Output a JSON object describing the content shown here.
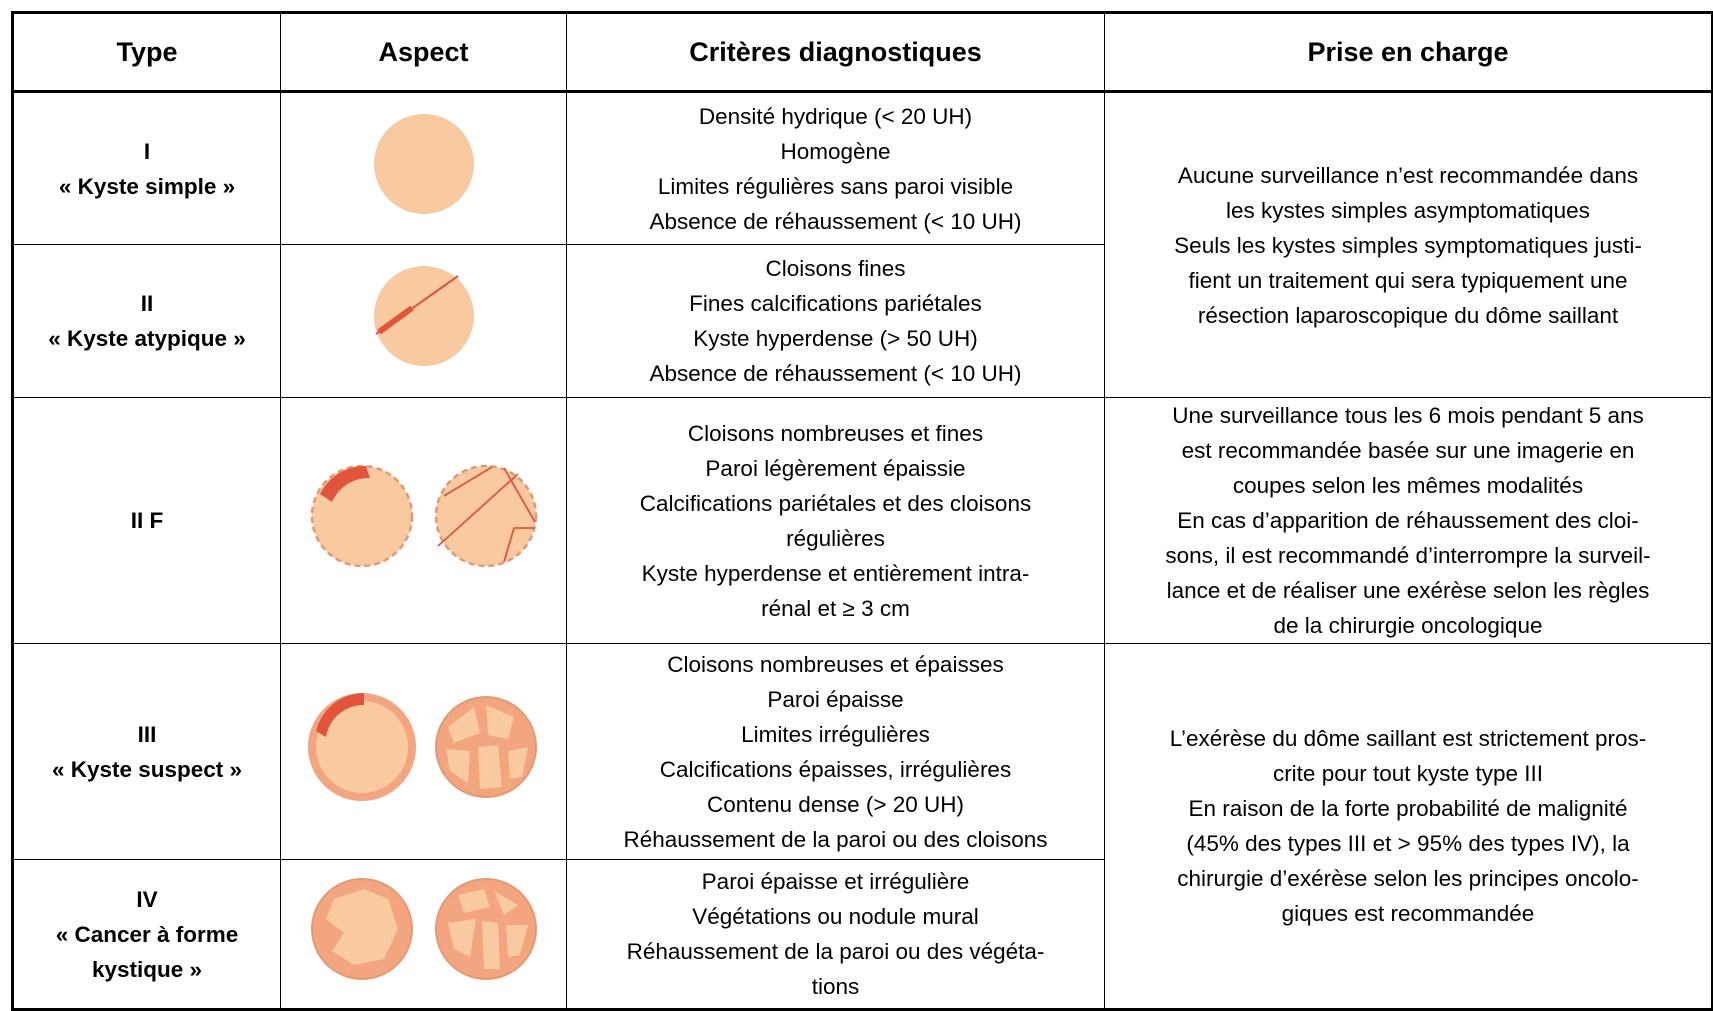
{
  "table": {
    "headers": [
      "Type",
      "Aspect",
      "Critères diagnostiques",
      "Prise en charge"
    ],
    "rows": [
      {
        "type": "I",
        "name": [
          "« Kyste simple »"
        ],
        "criteria": [
          "Densité hydrique (< 20 UH)",
          "Homogène",
          "Limites régulières sans paroi visible",
          "Absence de réhaussement (< 10 UH)"
        ]
      },
      {
        "type": "II",
        "name": [
          "« Kyste atypique »"
        ],
        "criteria": [
          "Cloisons fines",
          "Fines calcifications pariétales",
          "Kyste hyperdense (> 50 UH)",
          "Absence de réhaussement (< 10 UH)"
        ]
      },
      {
        "type": "II F",
        "criteria": [
          "Cloisons nombreuses et fines",
          "Paroi légèrement épaissie",
          "Calcifications pariétales et des cloisons",
          "régulières",
          "Kyste hyperdense et entièrement intra-",
          "rénal et ≥ 3 cm"
        ]
      },
      {
        "type": "III",
        "name": [
          "« Kyste suspect »"
        ],
        "criteria": [
          "Cloisons nombreuses et épaisses",
          "Paroi épaisse",
          "Limites irrégulières",
          "Calcifications épaisses, irrégulières",
          "Contenu dense (> 20 UH)",
          "Réhaussement de la paroi ou des cloisons"
        ]
      },
      {
        "type": "IV",
        "name": [
          "« Cancer à forme",
          "kystique »"
        ],
        "criteria": [
          "Paroi épaisse et irrégulière",
          "Végétations ou nodule mural",
          "Réhaussement de la paroi ou des végéta-",
          "tions"
        ]
      }
    ],
    "management": [
      [
        "Aucune surveillance n’est recommandée dans",
        "les kystes simples asymptomatiques",
        "Seuls les kystes simples symptomatiques justi-",
        "fient un traitement qui sera typiquement une",
        "résection laparoscopique du dôme saillant"
      ],
      [
        "Une surveillance tous les 6 mois pendant 5 ans",
        "est recommandée basée sur une imagerie en",
        "coupes selon les mêmes modalités",
        "En cas d’apparition de réhaussement des cloi-",
        "sons, il est recommandé d’interrompre la surveil-",
        "lance et de réaliser une exérèse selon les règles",
        "de la chirurgie oncologique"
      ],
      [
        "L’exérèse du dôme saillant est strictement pros-",
        "crite pour tout kyste type III",
        "En raison de la forte probabilité de malignité",
        "(45% des types III et > 95% des types IV), la",
        "chirurgie d’exérèse selon les principes oncolo-",
        "giques est recommandée"
      ]
    ]
  }
}
